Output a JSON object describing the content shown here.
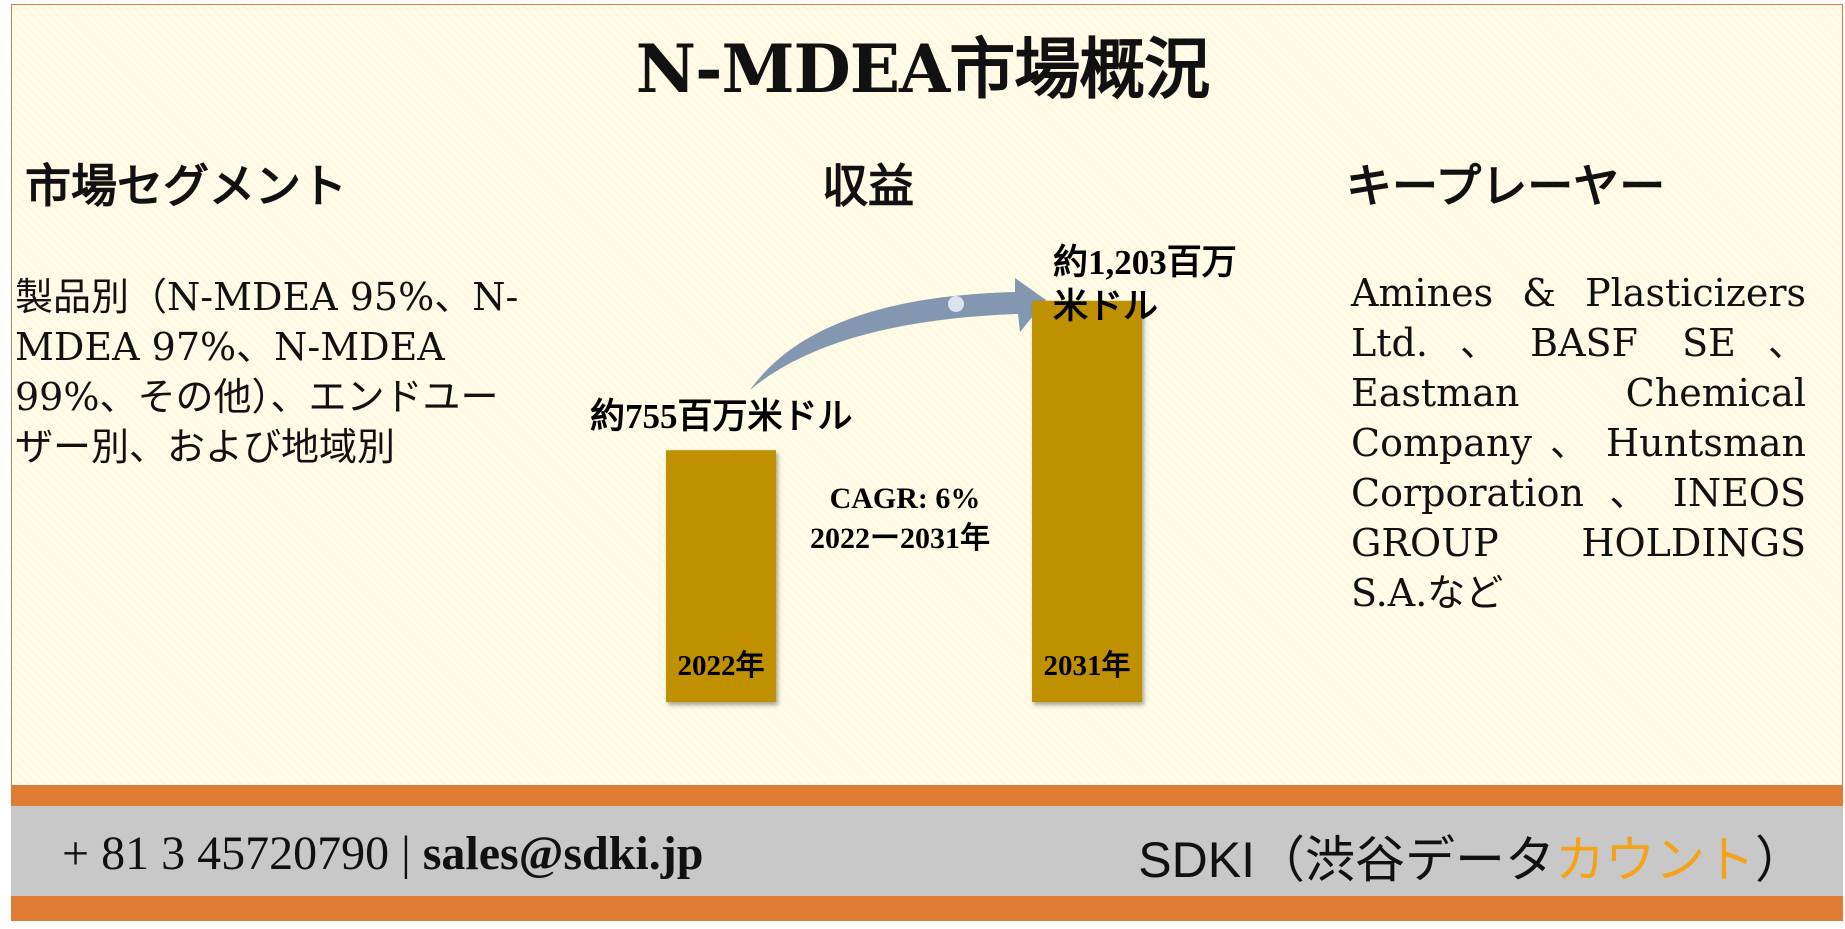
{
  "title": "N-MDEA市場概況",
  "sections": {
    "segment": {
      "heading": "市場セグメント",
      "body": "製品別（N-MDEA 95%、N-MDEA 97%、N-MDEA 99%、その他）、エンドユーザー別、および地域別"
    },
    "revenue": {
      "heading": "収益"
    },
    "players": {
      "heading": "キープレーヤー",
      "body": "Amines & Plasticizers Ltd.、BASF SE、Eastman Chemical Company、Huntsman Corporation、INEOS GROUP HOLDINGS S.A.など"
    }
  },
  "chart_data": {
    "type": "bar",
    "categories": [
      "2022年",
      "2031年"
    ],
    "values": [
      755,
      1203
    ],
    "value_labels": [
      "約755百万米ドル",
      "約1,203百万米ドル"
    ],
    "cagr_line1": "CAGR: 6%",
    "cagr_line2": "2022ー2031年",
    "bar_color": "#bf9000",
    "arrow_color": "#8497b0"
  },
  "footer": {
    "phone": "+ 81 3 45720790",
    "separator": "|",
    "email": "sales@sdki.jp",
    "brand_main": "SDKI（渋谷データ",
    "brand_accent": "カウント",
    "brand_end": "）",
    "accent_color": "#f5a21a",
    "bar_color": "#e07b33"
  }
}
